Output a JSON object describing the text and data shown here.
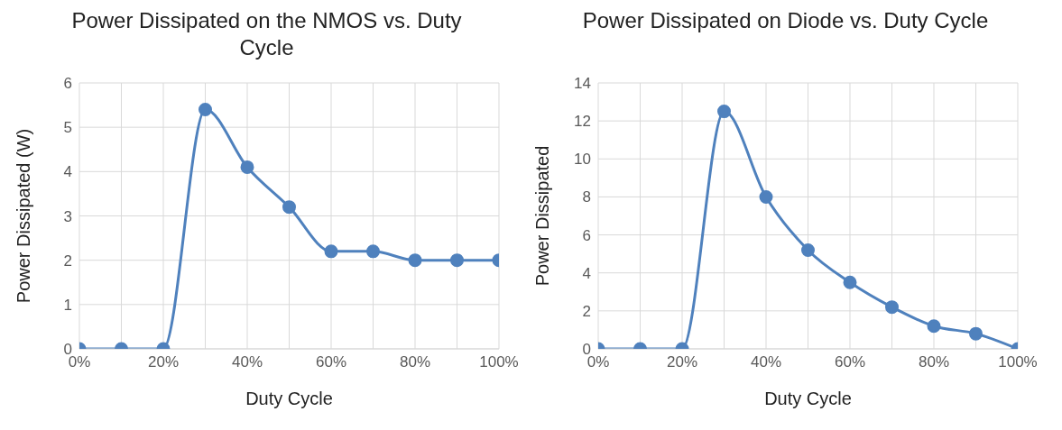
{
  "chart_data": [
    {
      "type": "line",
      "title": "Power Dissipated on the NMOS vs. Duty Cycle",
      "xlabel": "Duty Cycle",
      "ylabel": "Power Dissipated (W)",
      "x": [
        0,
        10,
        20,
        30,
        40,
        50,
        60,
        70,
        80,
        90,
        100
      ],
      "series": [
        {
          "color": "#4f81bd",
          "values": [
            0,
            0,
            0,
            5.4,
            4.1,
            3.2,
            2.2,
            2.2,
            2.0,
            2.0,
            2.0
          ]
        }
      ],
      "xlim": [
        0,
        100
      ],
      "xticks": [
        {
          "value": 0,
          "label": "0%"
        },
        {
          "value": 10,
          "label": null
        },
        {
          "value": 20,
          "label": "20%"
        },
        {
          "value": 30,
          "label": null
        },
        {
          "value": 40,
          "label": "40%"
        },
        {
          "value": 50,
          "label": null
        },
        {
          "value": 60,
          "label": "60%"
        },
        {
          "value": 70,
          "label": null
        },
        {
          "value": 80,
          "label": "80%"
        },
        {
          "value": 90,
          "label": null
        },
        {
          "value": 100,
          "label": "100%"
        }
      ],
      "ylim": [
        0,
        6
      ],
      "yticks": [
        0,
        1,
        2,
        3,
        4,
        5,
        6
      ],
      "grid": true,
      "marker": "circle"
    },
    {
      "type": "line",
      "title": "Power Dissipated on Diode vs. Duty Cycle",
      "xlabel": "Duty Cycle",
      "ylabel": "Power Dissipated",
      "x": [
        0,
        10,
        20,
        30,
        40,
        50,
        60,
        70,
        80,
        90,
        100
      ],
      "series": [
        {
          "color": "#4f81bd",
          "values": [
            0,
            0,
            0,
            12.5,
            8,
            5.2,
            3.5,
            2.2,
            1.2,
            0.8,
            0
          ]
        }
      ],
      "xlim": [
        0,
        100
      ],
      "xticks": [
        {
          "value": 0,
          "label": "0%"
        },
        {
          "value": 10,
          "label": null
        },
        {
          "value": 20,
          "label": "20%"
        },
        {
          "value": 30,
          "label": null
        },
        {
          "value": 40,
          "label": "40%"
        },
        {
          "value": 50,
          "label": null
        },
        {
          "value": 60,
          "label": "60%"
        },
        {
          "value": 70,
          "label": null
        },
        {
          "value": 80,
          "label": "80%"
        },
        {
          "value": 90,
          "label": null
        },
        {
          "value": 100,
          "label": "100%"
        }
      ],
      "ylim": [
        0,
        14
      ],
      "yticks": [
        0,
        2,
        4,
        6,
        8,
        10,
        12,
        14
      ],
      "grid": true,
      "marker": "circle"
    }
  ]
}
